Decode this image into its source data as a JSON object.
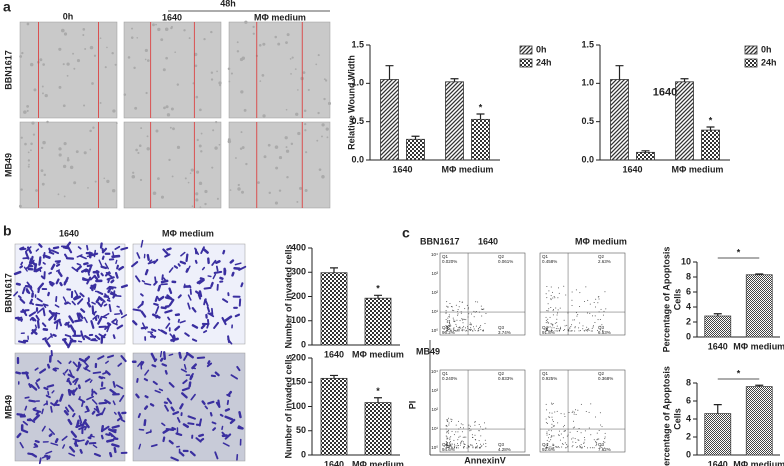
{
  "panel_labels": [
    "a",
    "b",
    "c"
  ],
  "panel_a": {
    "time_label": "48h",
    "column_labels": [
      "0h",
      "1640",
      "MΦ medium"
    ],
    "row_labels": [
      "BBN1617",
      "MB49"
    ]
  },
  "panel_b": {
    "column_labels": [
      "1640",
      "MΦ medium"
    ],
    "row_labels": [
      "BBN1617",
      "MB49"
    ]
  },
  "panel_c": {
    "column_labels": [
      "1640",
      "MΦ medium"
    ],
    "row_labels": [
      "BBN1617",
      "MB49"
    ],
    "y_axis_label": "PI",
    "x_axis_label": "AnnexinV",
    "axis_ticks": [
      "10⁰",
      "10¹",
      "10²",
      "10³",
      "10⁴"
    ],
    "flow_plots": [
      {
        "quadrants": [
          {
            "name": "Q1",
            "value": "0.020%"
          },
          {
            "name": "Q2",
            "value": "0.061%"
          },
          {
            "name": "Q4",
            "value": "96.2%"
          },
          {
            "name": "Q3",
            "value": "3.74%"
          }
        ]
      },
      {
        "quadrants": [
          {
            "name": "Q1",
            "value": "0.458%"
          },
          {
            "name": "Q2",
            "value": "2.63%"
          },
          {
            "name": "Q4",
            "value": "91.8%"
          },
          {
            "name": "Q3",
            "value": "6.53%"
          }
        ]
      },
      {
        "quadrants": [
          {
            "name": "Q1",
            "value": "0.240%"
          },
          {
            "name": "Q2",
            "value": "0.833%"
          },
          {
            "name": "Q4",
            "value": "94.6%"
          },
          {
            "name": "Q3",
            "value": "4.28%"
          }
        ]
      },
      {
        "quadrants": [
          {
            "name": "Q1",
            "value": "0.925%"
          },
          {
            "name": "Q2",
            "value": "0.368%"
          },
          {
            "name": "Q4",
            "value": "92.6%"
          },
          {
            "name": "Q3",
            "value": "7.62%"
          }
        ]
      }
    ]
  },
  "chart_data": [
    {
      "type": "bar",
      "ylabel": "Relative Wound Width",
      "categories": [
        "1640",
        "MΦ medium"
      ],
      "series": [
        {
          "name": "0h",
          "color": "#333333",
          "pattern": "hatch",
          "values": [
            1.05,
            1.02
          ],
          "errors": [
            0.18,
            0.04
          ]
        },
        {
          "name": "24h",
          "color": "#333333",
          "pattern": "checker",
          "values": [
            0.27,
            0.53
          ],
          "errors": [
            0.04,
            0.07
          ]
        }
      ],
      "ylim": [
        0,
        1.5
      ],
      "yticks": [
        {
          "value": 0,
          "label": "0.0"
        },
        0.5,
        {
          "value": 1,
          "label": "1.0"
        },
        1.5
      ],
      "legend": "upper-right",
      "annotations": [
        {
          "text": "*",
          "series": 1,
          "category": 1
        }
      ]
    },
    {
      "type": "bar",
      "categories": [
        "1640",
        "MΦ medium"
      ],
      "series": [
        {
          "name": "0h",
          "color": "#333333",
          "pattern": "hatch",
          "values": [
            1.05,
            1.02
          ],
          "errors": [
            0.18,
            0.04
          ]
        },
        {
          "name": "24h",
          "color": "#333333",
          "pattern": "checker",
          "values": [
            0.1,
            0.39
          ],
          "errors": [
            0.02,
            0.04
          ]
        }
      ],
      "ylim": [
        0,
        1.5
      ],
      "yticks": [
        {
          "value": 0,
          "label": "0.0"
        },
        0.5,
        {
          "value": 1,
          "label": "1.0"
        },
        1.5
      ],
      "legend": "upper-right",
      "annotations": [
        {
          "text": "1640"
        },
        {
          "text": "*",
          "series": 1,
          "category": 1
        }
      ]
    },
    {
      "type": "bar",
      "ylabel": "Number of invaded cells",
      "categories": [
        "1640",
        "MΦ medium"
      ],
      "series": [
        {
          "color": "#333333",
          "pattern": "checker",
          "values": [
            298,
            193
          ],
          "errors": [
            20,
            12
          ]
        }
      ],
      "ylim": [
        0,
        400
      ],
      "yticks": [
        0,
        100,
        200,
        300,
        400
      ],
      "annotations": [
        {
          "text": "*",
          "series": 0,
          "category": 1
        }
      ]
    },
    {
      "type": "bar",
      "ylabel": "Number of invaded cells",
      "categories": [
        "1640",
        "MΦ medium"
      ],
      "series": [
        {
          "color": "#333333",
          "pattern": "checker",
          "values": [
            158,
            108
          ],
          "errors": [
            6,
            10
          ]
        }
      ],
      "ylim": [
        0,
        200
      ],
      "yticks": [
        0,
        50,
        100,
        150,
        200
      ],
      "annotations": [
        {
          "text": "*",
          "series": 0,
          "category": 1
        }
      ]
    },
    {
      "type": "bar",
      "ylabel": [
        "Percentage of Apoptosis",
        "Cells"
      ],
      "categories": [
        "1640",
        "MΦ medium"
      ],
      "series": [
        {
          "color": "#444444",
          "pattern": "fine",
          "values": [
            2.8,
            8.3
          ],
          "errors": [
            0.3,
            0.1
          ]
        }
      ],
      "ylim": [
        0,
        10
      ],
      "yticks": [
        0,
        2,
        4,
        6,
        8,
        10
      ],
      "annotations": [
        {
          "text": "*",
          "bracket": true
        }
      ]
    },
    {
      "type": "bar",
      "ylabel": [
        "Percentage of Apoptosis",
        "Cells"
      ],
      "categories": [
        "1640",
        "MΦ medium"
      ],
      "series": [
        {
          "color": "#444444",
          "pattern": "fine",
          "values": [
            4.6,
            7.6
          ],
          "errors": [
            1.0,
            0.15
          ]
        }
      ],
      "ylim": [
        0,
        8
      ],
      "yticks": [
        0,
        2,
        4,
        6,
        8
      ],
      "annotations": [
        {
          "text": "*",
          "bracket": true
        }
      ]
    }
  ]
}
